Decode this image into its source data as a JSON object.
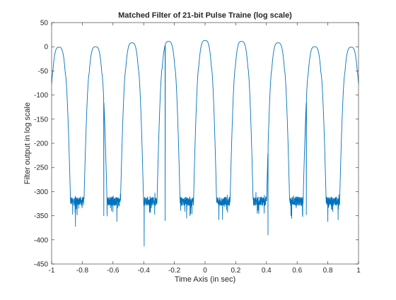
{
  "chart_data": {
    "type": "line",
    "title": "Matched Filter of 21-bit Pulse Traine (log scale)",
    "xlabel": "Time Axis (in sec)",
    "ylabel": "Filter output in log scale",
    "xlim": [
      -1,
      1
    ],
    "ylim": [
      -450,
      50
    ],
    "xticks": [
      -1,
      -0.8,
      -0.6,
      -0.4,
      -0.2,
      0,
      0.2,
      0.4,
      0.6,
      0.8,
      1
    ],
    "xtick_labels": [
      "-1",
      "-0.8",
      "-0.6",
      "-0.4",
      "-0.2",
      "0",
      "0.2",
      "0.4",
      "0.6",
      "0.8",
      "1"
    ],
    "yticks": [
      50,
      0,
      -50,
      -100,
      -150,
      -200,
      -250,
      -300,
      -350,
      -400,
      -450
    ],
    "ytick_labels": [
      "50",
      "0",
      "-50",
      "-100",
      "-150",
      "-200",
      "-250",
      "-300",
      "-350",
      "-400",
      "-450"
    ],
    "grid": false,
    "box": true,
    "series": [
      {
        "color": "#0072BD",
        "pulse_centers": [
          -0.952,
          -0.714,
          -0.476,
          -0.238,
          0,
          0.238,
          0.476,
          0.714,
          0.952
        ],
        "pulse_peaks": [
          -1,
          0,
          8,
          11,
          13,
          11,
          8,
          0,
          -1
        ],
        "pulse_half_width": 0.075,
        "noise_floor": -320,
        "noise_spikes": [
          {
            "x": -0.397,
            "y": -413
          },
          {
            "x": 0.41,
            "y": -390
          },
          {
            "x": -0.845,
            "y": -372
          },
          {
            "x": -0.575,
            "y": -362
          },
          {
            "x": -0.12,
            "y": -355
          },
          {
            "x": 0.09,
            "y": -358
          },
          {
            "x": 0.34,
            "y": -345
          },
          {
            "x": 0.56,
            "y": -350
          },
          {
            "x": 0.8,
            "y": -362
          },
          {
            "x": 0.66,
            "y": -348
          },
          {
            "x": -0.26,
            "y": -360
          },
          {
            "x": -0.66,
            "y": -350
          }
        ]
      }
    ]
  }
}
